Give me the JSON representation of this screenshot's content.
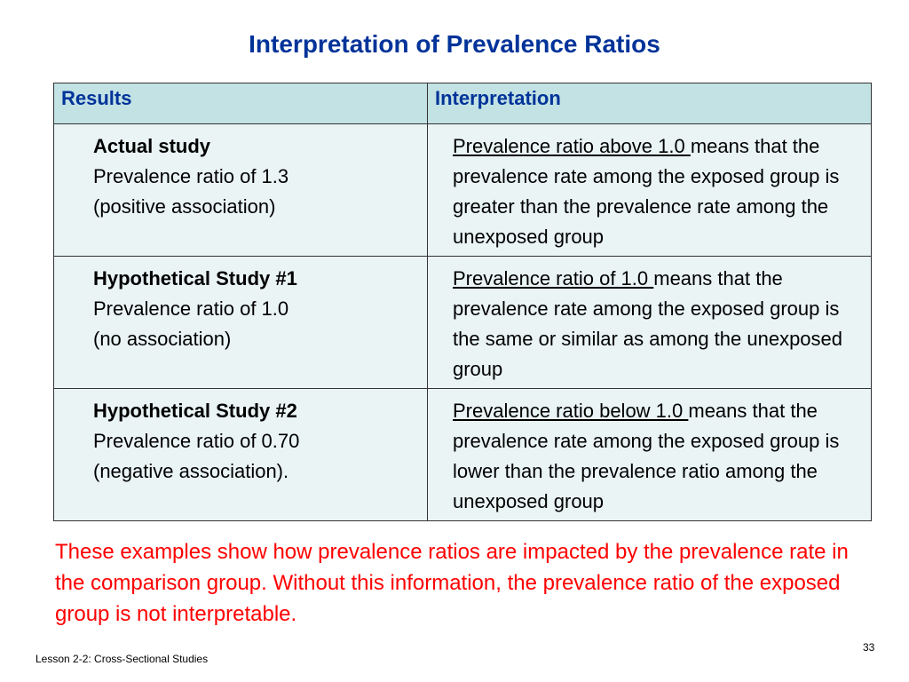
{
  "slide": {
    "title": "Interpretation of Prevalence Ratios",
    "table": {
      "headers": [
        "Results",
        "Interpretation"
      ],
      "rows": [
        {
          "study": "Actual study",
          "ratio": "Prevalence ratio of 1.3",
          "association": "(positive  association)",
          "interp_underlined": "Prevalence ratio above 1.0 ",
          "interp_rest": "means that the prevalence rate among the exposed group is greater than the prevalence rate among the unexposed group"
        },
        {
          "study": "Hypothetical Study #1",
          "ratio": "Prevalence ratio of 1.0",
          "association": "(no association)",
          "interp_underlined": "Prevalence ratio  of 1.0 ",
          "interp_rest": "means that the prevalence rate among the exposed group is the same or similar as among the unexposed group"
        },
        {
          "study": "Hypothetical Study #2",
          "ratio": "Prevalence ratio of 0.70",
          "association": "(negative association).",
          "interp_underlined": "Prevalence ratio below 1.0 ",
          "interp_rest": "means that the prevalence rate among the exposed group is lower than the prevalence ratio among the unexposed group"
        }
      ]
    },
    "note": "These examples show how prevalence ratios are impacted by the prevalence rate in the comparison group.  Without this information, the prevalence ratio of the exposed group is not interpretable.",
    "footer": "Lesson 2-2: Cross-Sectional Studies",
    "page_number": "33"
  }
}
